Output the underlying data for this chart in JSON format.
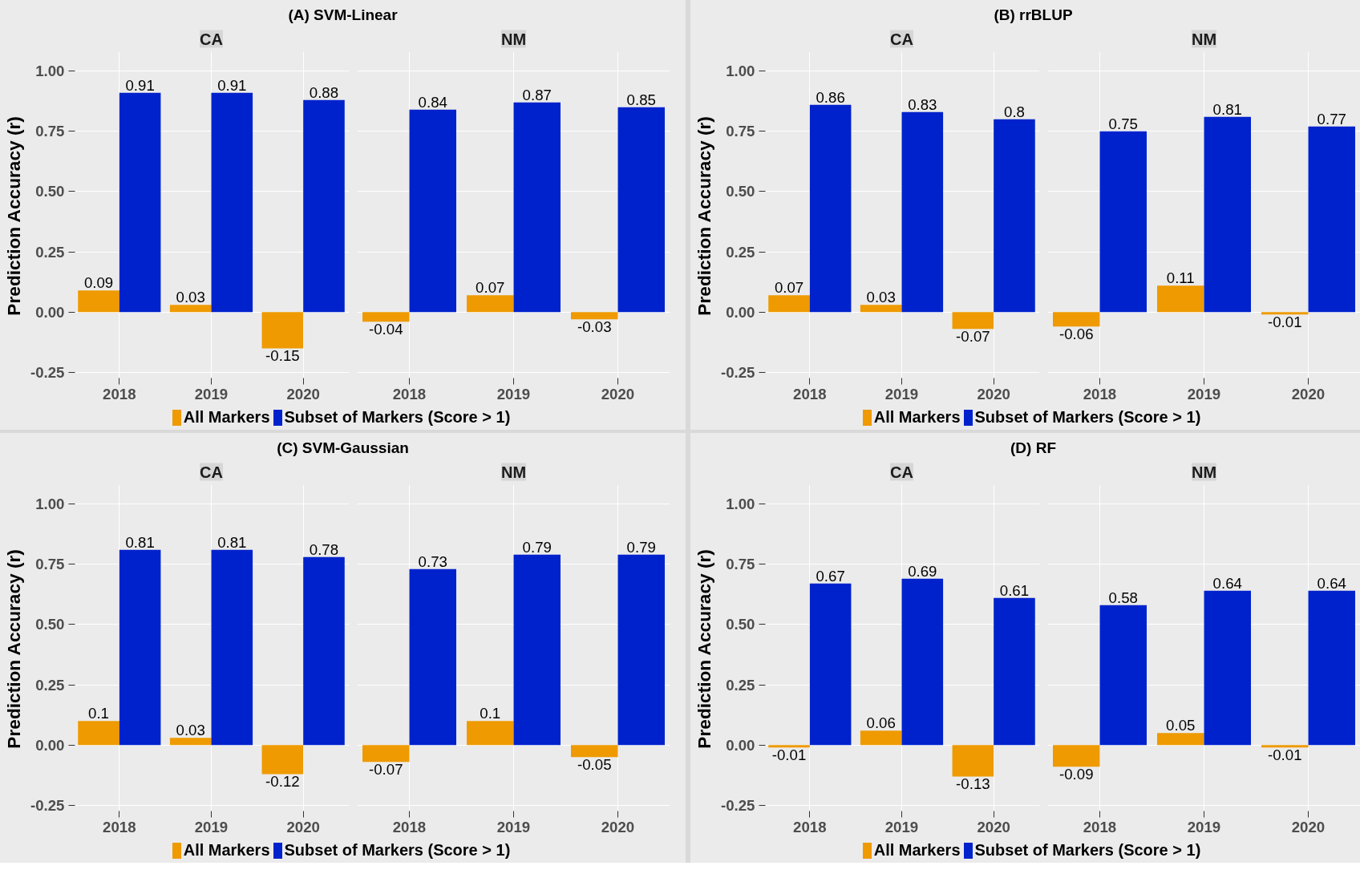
{
  "chart_data": [
    {
      "type": "bar",
      "title": "(A) SVM-Linear",
      "subtitle": "CA",
      "ylabel": "Prediction Accuracy (r)",
      "categories": [
        "2018",
        "2019",
        "2020"
      ],
      "ylim": [
        -0.28,
        1.08
      ],
      "yticks": [
        {
          "value": -0.25,
          "label": "-0.25"
        },
        {
          "value": 0,
          "label": "0.00"
        },
        {
          "value": 0.25,
          "label": "0.25"
        },
        {
          "value": 0.5,
          "label": "0.50"
        },
        {
          "value": 0.75,
          "label": "0.75"
        },
        {
          "value": 1,
          "label": "1.00"
        }
      ],
      "grid": true,
      "data_labels": true,
      "legend": "bottom",
      "series": [
        {
          "name": "All Markers",
          "color": "#ee9a00",
          "values": [
            0.09,
            0.03,
            -0.15
          ]
        },
        {
          "name": "Subset of Markers (Score > 1)",
          "color": "#0022cc",
          "values": [
            0.91,
            0.91,
            0.88
          ]
        }
      ]
    },
    {
      "type": "bar",
      "subtitle": "NM",
      "categories": [
        "2018",
        "2019",
        "2020"
      ],
      "ylim": [
        -0.28,
        1.08
      ],
      "yticks": [
        -0.25,
        0,
        0.25,
        0.5,
        0.75,
        1
      ],
      "grid": true,
      "data_labels": true,
      "tick_labels": "x",
      "series": [
        {
          "color": "#ee9a00",
          "values": [
            -0.04,
            0.07,
            -0.03
          ]
        },
        {
          "color": "#0022cc",
          "values": [
            0.84,
            0.87,
            0.85
          ]
        }
      ]
    },
    {
      "type": "bar",
      "title": "(B) rrBLUP",
      "subtitle": "CA",
      "ylabel": "Prediction Accuracy (r)",
      "categories": [
        "2018",
        "2019",
        "2020"
      ],
      "ylim": [
        -0.28,
        1.08
      ],
      "yticks": [
        {
          "value": -0.25,
          "label": "-0.25"
        },
        {
          "value": 0,
          "label": "0.00"
        },
        {
          "value": 0.25,
          "label": "0.25"
        },
        {
          "value": 0.5,
          "label": "0.50"
        },
        {
          "value": 0.75,
          "label": "0.75"
        },
        {
          "value": 1,
          "label": "1.00"
        }
      ],
      "grid": true,
      "data_labels": true,
      "legend": "bottom",
      "series": [
        {
          "name": "All Markers",
          "color": "#ee9a00",
          "values": [
            0.07,
            0.03,
            -0.07
          ]
        },
        {
          "name": "Subset of Markers (Score > 1)",
          "color": "#0022cc",
          "values": [
            0.86,
            0.83,
            0.8
          ]
        }
      ]
    },
    {
      "type": "bar",
      "subtitle": "NM",
      "categories": [
        "2018",
        "2019",
        "2020"
      ],
      "ylim": [
        -0.28,
        1.08
      ],
      "yticks": [
        -0.25,
        0,
        0.25,
        0.5,
        0.75,
        1
      ],
      "grid": true,
      "data_labels": true,
      "tick_labels": "x",
      "series": [
        {
          "color": "#ee9a00",
          "values": [
            -0.06,
            0.11,
            -0.01
          ]
        },
        {
          "color": "#0022cc",
          "values": [
            0.75,
            0.81,
            0.77
          ]
        }
      ]
    },
    {
      "type": "bar",
      "title": "(C) SVM-Gaussian",
      "subtitle": "CA",
      "ylabel": "Prediction Accuracy (r)",
      "categories": [
        "2018",
        "2019",
        "2020"
      ],
      "ylim": [
        -0.28,
        1.08
      ],
      "yticks": [
        {
          "value": -0.25,
          "label": "-0.25"
        },
        {
          "value": 0,
          "label": "0.00"
        },
        {
          "value": 0.25,
          "label": "0.25"
        },
        {
          "value": 0.5,
          "label": "0.50"
        },
        {
          "value": 0.75,
          "label": "0.75"
        },
        {
          "value": 1,
          "label": "1.00"
        }
      ],
      "grid": true,
      "data_labels": true,
      "legend": "bottom",
      "series": [
        {
          "name": "All Markers",
          "color": "#ee9a00",
          "values": [
            0.1,
            0.03,
            -0.12
          ]
        },
        {
          "name": "Subset of Markers (Score > 1)",
          "color": "#0022cc",
          "values": [
            0.81,
            0.81,
            0.78
          ]
        }
      ]
    },
    {
      "type": "bar",
      "subtitle": "NM",
      "categories": [
        "2018",
        "2019",
        "2020"
      ],
      "ylim": [
        -0.28,
        1.08
      ],
      "yticks": [
        -0.25,
        0,
        0.25,
        0.5,
        0.75,
        1
      ],
      "grid": true,
      "data_labels": true,
      "tick_labels": "x",
      "series": [
        {
          "color": "#ee9a00",
          "values": [
            -0.07,
            0.1,
            -0.05
          ]
        },
        {
          "color": "#0022cc",
          "values": [
            0.73,
            0.79,
            0.79
          ]
        }
      ]
    },
    {
      "type": "bar",
      "title": "(D) RF",
      "subtitle": "CA",
      "ylabel": "Prediction Accuracy (r)",
      "categories": [
        "2018",
        "2019",
        "2020"
      ],
      "ylim": [
        -0.28,
        1.08
      ],
      "yticks": [
        {
          "value": -0.25,
          "label": "-0.25"
        },
        {
          "value": 0,
          "label": "0.00"
        },
        {
          "value": 0.25,
          "label": "0.25"
        },
        {
          "value": 0.5,
          "label": "0.50"
        },
        {
          "value": 0.75,
          "label": "0.75"
        },
        {
          "value": 1,
          "label": "1.00"
        }
      ],
      "grid": true,
      "data_labels": true,
      "legend": "bottom",
      "series": [
        {
          "name": "All Markers",
          "color": "#ee9a00",
          "values": [
            -0.01,
            0.06,
            -0.13
          ]
        },
        {
          "name": "Subset of Markers (Score > 1)",
          "color": "#0022cc",
          "values": [
            0.67,
            0.69,
            0.61
          ]
        }
      ]
    },
    {
      "type": "bar",
      "subtitle": "NM",
      "categories": [
        "2018",
        "2019",
        "2020"
      ],
      "ylim": [
        -0.28,
        1.08
      ],
      "yticks": [
        -0.25,
        0,
        0.25,
        0.5,
        0.75,
        1
      ],
      "grid": true,
      "data_labels": true,
      "tick_labels": "x",
      "series": [
        {
          "color": "#ee9a00",
          "values": [
            -0.09,
            0.05,
            -0.01
          ]
        },
        {
          "color": "#0022cc",
          "values": [
            0.58,
            0.64,
            0.64
          ]
        }
      ]
    }
  ]
}
